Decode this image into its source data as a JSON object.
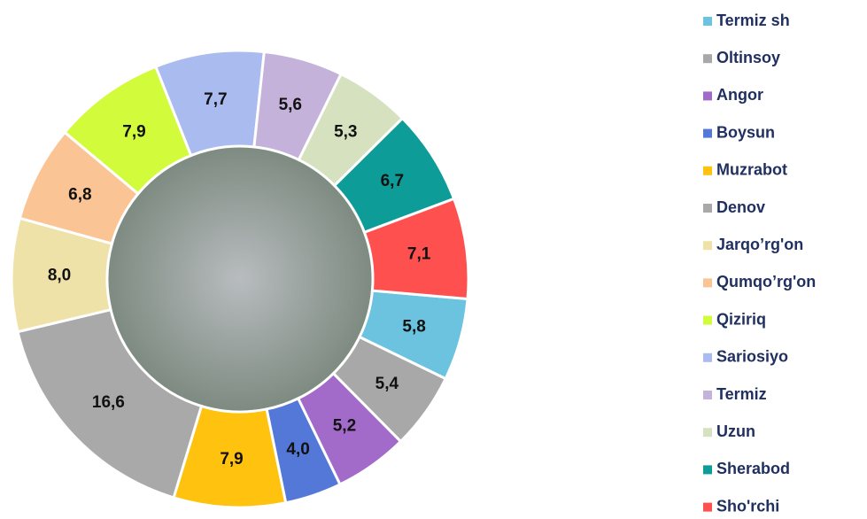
{
  "chart_data": {
    "type": "pie",
    "donut": true,
    "categories": [
      "Termiz sh",
      "Oltinsoy",
      "Angor",
      "Boysun",
      "Muzrabot",
      "Denov",
      "Jarqo’rg'on",
      "Qumqo’rg'on",
      "Qiziriq",
      "Sariosiyo",
      "Termiz",
      "Uzun",
      "Sherabod",
      "Sho'rchi"
    ],
    "values": [
      5.8,
      5.4,
      5.2,
      4.0,
      7.9,
      16.6,
      8.0,
      6.8,
      7.9,
      7.7,
      5.6,
      5.3,
      6.7,
      7.1
    ],
    "value_labels": [
      "5,8",
      "5,4",
      "5,2",
      "4,0",
      "7,9",
      "16,6",
      "8,0",
      "6,8",
      "7,9",
      "7,7",
      "5,6",
      "5,3",
      "6,7",
      "7,1"
    ],
    "colors": [
      "#6cc3df",
      "#a8a8a8",
      "#a36bc9",
      "#5478d8",
      "#ffc20e",
      "#a9a9a9",
      "#efe2a8",
      "#fbc494",
      "#d2fb3c",
      "#aabbf0",
      "#c4b2da",
      "#d6e2bf",
      "#0e9c99",
      "#ff5050"
    ],
    "legend": "right"
  }
}
